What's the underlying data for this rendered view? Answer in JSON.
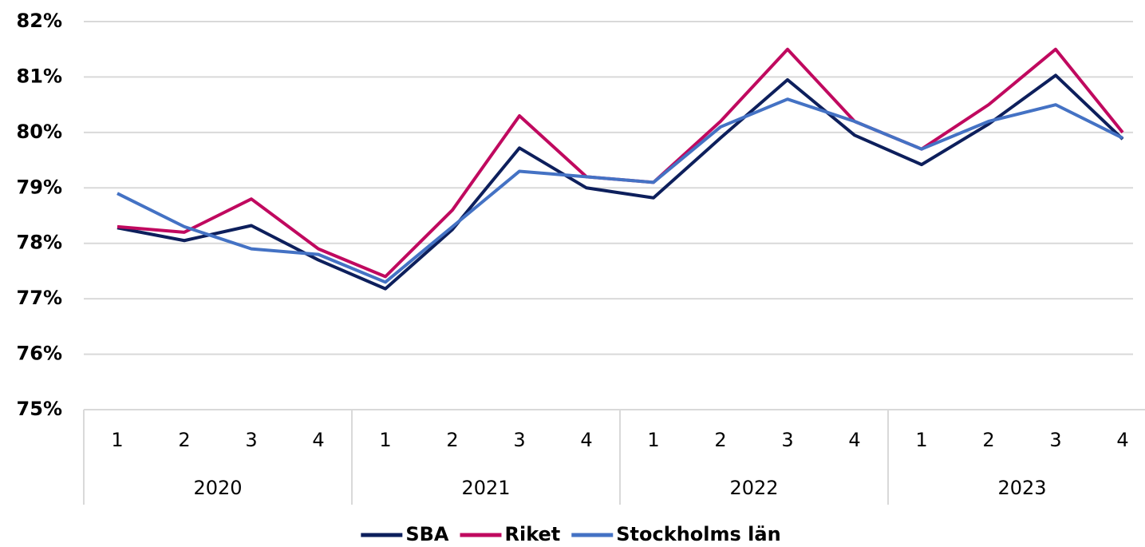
{
  "chart_data": {
    "type": "line",
    "categories": [
      "1",
      "2",
      "3",
      "4",
      "1",
      "2",
      "3",
      "4",
      "1",
      "2",
      "3",
      "4",
      "1",
      "2",
      "3",
      "4"
    ],
    "year_groups": [
      "2020",
      "2021",
      "2022",
      "2023"
    ],
    "series": [
      {
        "name": "SBA",
        "color": "#0d1f5c",
        "values": [
          78.28,
          78.05,
          78.32,
          77.7,
          77.18,
          78.25,
          79.72,
          79.0,
          78.82,
          79.9,
          80.95,
          79.95,
          79.42,
          80.15,
          81.03,
          79.88
        ]
      },
      {
        "name": "Riket",
        "color": "#c0095f",
        "values": [
          78.3,
          78.2,
          78.8,
          77.9,
          77.4,
          78.6,
          80.3,
          79.2,
          79.1,
          80.2,
          81.5,
          80.2,
          79.7,
          80.5,
          81.5,
          80.0
        ]
      },
      {
        "name": "Stockholms län",
        "color": "#4472c4",
        "values": [
          78.9,
          78.3,
          77.9,
          77.8,
          77.3,
          78.3,
          79.3,
          79.2,
          79.1,
          80.1,
          80.6,
          80.2,
          79.7,
          80.2,
          80.5,
          79.9
        ]
      }
    ],
    "ylim": [
      75,
      82
    ],
    "yticks": [
      {
        "value": 75,
        "label": "75%"
      },
      {
        "value": 76,
        "label": "76%"
      },
      {
        "value": 77,
        "label": "77%"
      },
      {
        "value": 78,
        "label": "78%"
      },
      {
        "value": 79,
        "label": "79%"
      },
      {
        "value": 80,
        "label": "80%"
      },
      {
        "value": 81,
        "label": "81%"
      },
      {
        "value": 82,
        "label": "82%"
      }
    ],
    "grid": true,
    "legend": "bottom"
  }
}
